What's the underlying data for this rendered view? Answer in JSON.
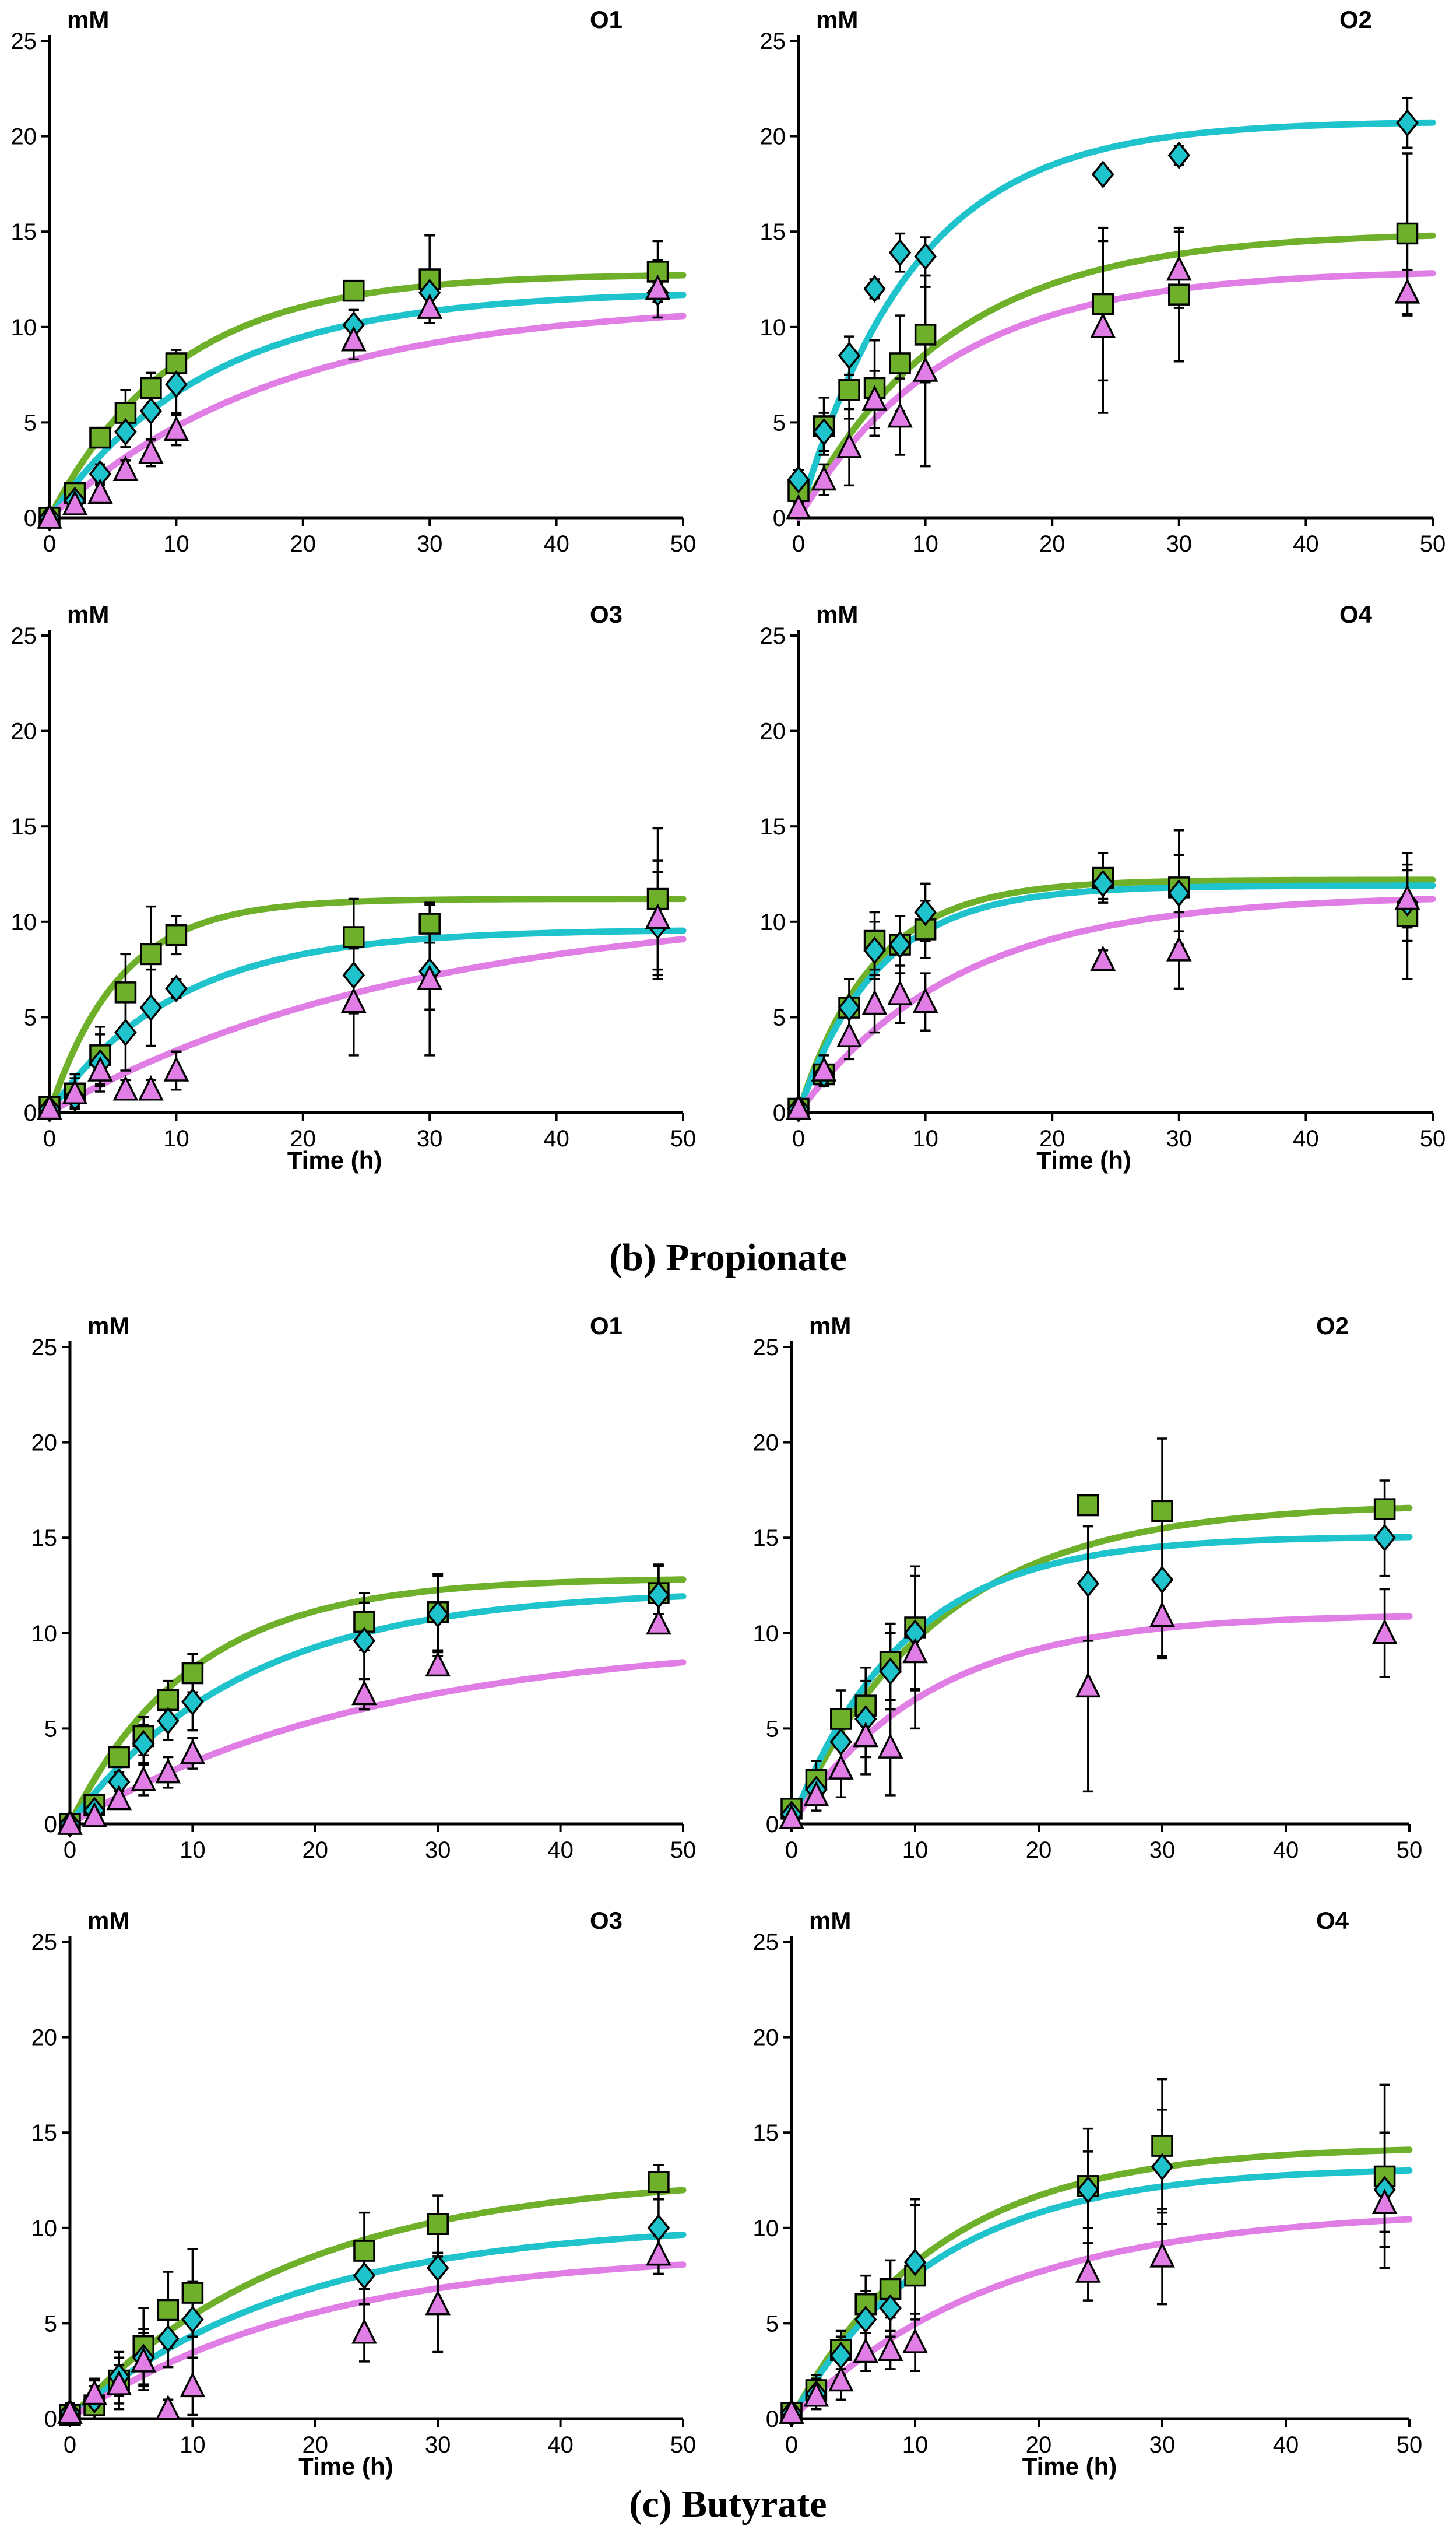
{
  "captions": [
    "(b) Propionate",
    "(c) Butyrate"
  ],
  "series_colors": {
    "square": "#6fb02a",
    "diamond": "#1fc3cc",
    "triangle": "#e07ee6"
  },
  "chart_data": [
    {
      "type": "scatter",
      "section": "Propionate",
      "panel": "O1",
      "unit": "mM",
      "xlabel": "",
      "xlim": [
        0,
        50
      ],
      "ylim": [
        0,
        25
      ],
      "xticks": [
        0,
        10,
        20,
        30,
        40,
        50
      ],
      "yticks": [
        0,
        5,
        10,
        15,
        20,
        25
      ],
      "x": [
        0,
        2,
        4,
        6,
        8,
        10,
        24,
        30,
        48
      ],
      "series": [
        {
          "name": "square",
          "values": [
            0,
            1.3,
            4.2,
            5.5,
            6.8,
            8.1,
            11.9,
            12.5,
            12.9
          ],
          "errors": [
            0,
            0.4,
            0.5,
            1.2,
            0.8,
            0.7,
            0.2,
            2.3,
            1.6
          ],
          "fit": {
            "asymptote": 12.8,
            "rate": 0.1
          }
        },
        {
          "name": "diamond",
          "values": [
            0,
            0.9,
            2.3,
            4.5,
            5.6,
            7,
            10.1,
            11.8,
            11.8
          ],
          "errors": [
            0,
            0.3,
            0.5,
            0.8,
            1.5,
            1.5,
            0.8,
            0.8,
            0.5
          ],
          "fit": {
            "asymptote": 11.9,
            "rate": 0.08
          }
        },
        {
          "name": "triangle",
          "values": [
            0,
            0.7,
            1.3,
            2.5,
            3.4,
            4.6,
            9.3,
            11,
            12
          ],
          "errors": [
            0,
            0.3,
            0.4,
            0.5,
            0.7,
            0.8,
            1,
            0.8,
            1.5
          ],
          "fit": {
            "asymptote": 11.3,
            "rate": 0.055
          }
        }
      ]
    },
    {
      "type": "scatter",
      "section": "Propionate",
      "panel": "O2",
      "unit": "mM",
      "xlabel": "",
      "xlim": [
        0,
        50
      ],
      "ylim": [
        0,
        25
      ],
      "xticks": [
        0,
        10,
        20,
        30,
        40,
        50
      ],
      "yticks": [
        0,
        5,
        10,
        15,
        20,
        25
      ],
      "x": [
        0,
        2,
        4,
        6,
        8,
        10,
        24,
        30,
        48
      ],
      "series": [
        {
          "name": "square",
          "values": [
            1.4,
            4.8,
            6.7,
            6.8,
            8.1,
            9.6,
            11.2,
            11.7,
            14.9
          ],
          "errors": [
            0.4,
            1.5,
            1.5,
            2.5,
            2.5,
            2.5,
            4,
            3.5,
            4.2
          ],
          "fit": {
            "asymptote": 15,
            "rate": 0.085
          }
        },
        {
          "name": "diamond",
          "values": [
            2,
            4.5,
            8.5,
            12,
            13.9,
            13.7,
            18,
            19,
            20.7
          ],
          "errors": [
            0.5,
            1,
            1,
            0.5,
            1,
            1,
            0,
            0.5,
            1.3
          ],
          "fit": {
            "asymptote": 20.8,
            "rate": 0.11
          }
        },
        {
          "name": "triangle",
          "values": [
            0.5,
            2,
            3.7,
            6.2,
            5.3,
            7.7,
            10,
            13,
            11.8
          ],
          "errors": [
            0.3,
            0.8,
            2,
            1.5,
            2,
            5,
            4.5,
            2,
            1.2
          ],
          "fit": {
            "asymptote": 13,
            "rate": 0.085
          }
        }
      ]
    },
    {
      "type": "scatter",
      "section": "Propionate",
      "panel": "O3",
      "unit": "mM",
      "xlabel": "Time (h)",
      "xlim": [
        0,
        50
      ],
      "ylim": [
        0,
        25
      ],
      "xticks": [
        0,
        10,
        20,
        30,
        40,
        50
      ],
      "yticks": [
        0,
        5,
        10,
        15,
        20,
        25
      ],
      "x": [
        0,
        2,
        4,
        6,
        8,
        10,
        24,
        30,
        48
      ],
      "series": [
        {
          "name": "square",
          "values": [
            0.3,
            1,
            3,
            6.3,
            8.3,
            9.3,
            9.2,
            9.9,
            11.2
          ],
          "errors": [
            0.5,
            1,
            1.5,
            2,
            2.5,
            1,
            2,
            1,
            3.7
          ],
          "fit": {
            "asymptote": 11.2,
            "rate": 0.18
          }
        },
        {
          "name": "diamond",
          "values": [
            0.2,
            0.8,
            2.6,
            4.2,
            5.5,
            6.5,
            7.2,
            7.4,
            9.8
          ],
          "errors": [
            0.3,
            0.5,
            1.5,
            2,
            2,
            0.5,
            2,
            2,
            2.8
          ],
          "fit": {
            "asymptote": 9.6,
            "rate": 0.1
          }
        },
        {
          "name": "triangle",
          "values": [
            0.2,
            1,
            2.2,
            1.2,
            1.2,
            2.2,
            5.8,
            7,
            10.2
          ],
          "errors": [
            0.3,
            0.8,
            0.8,
            0.5,
            0.5,
            1,
            2.8,
            4,
            3
          ],
          "fit": {
            "asymptote": 11,
            "rate": 0.035
          }
        }
      ]
    },
    {
      "type": "scatter",
      "section": "Propionate",
      "panel": "O4",
      "unit": "mM",
      "xlabel": "Time (h)",
      "xlim": [
        0,
        50
      ],
      "ylim": [
        0,
        25
      ],
      "xticks": [
        0,
        10,
        20,
        30,
        40,
        50
      ],
      "yticks": [
        0,
        5,
        10,
        15,
        20,
        25
      ],
      "x": [
        0,
        2,
        4,
        6,
        8,
        10,
        24,
        30,
        48
      ],
      "series": [
        {
          "name": "square",
          "values": [
            0.2,
            2,
            5.5,
            9,
            8.8,
            9.6,
            12.3,
            11.8,
            10.3
          ],
          "errors": [
            0.2,
            0.5,
            1.5,
            1.5,
            1.5,
            1.5,
            1.3,
            3,
            3.3
          ],
          "fit": {
            "asymptote": 12.2,
            "rate": 0.17
          }
        },
        {
          "name": "diamond",
          "values": [
            0.2,
            2,
            5.5,
            8.5,
            8.8,
            10.5,
            12,
            11.5,
            11
          ],
          "errors": [
            0.2,
            0.5,
            1.5,
            1.5,
            1.5,
            1.5,
            0.8,
            2,
            2
          ],
          "fit": {
            "asymptote": 11.9,
            "rate": 0.16
          }
        },
        {
          "name": "triangle",
          "values": [
            0.2,
            2.2,
            4,
            5.7,
            6.2,
            5.8,
            8,
            8.5,
            11.2
          ],
          "errors": [
            0.2,
            0.8,
            1.2,
            1.5,
            1.5,
            1.5,
            0.5,
            2,
            1.5
          ],
          "fit": {
            "asymptote": 11.4,
            "rate": 0.08
          }
        }
      ]
    },
    {
      "type": "scatter",
      "section": "Butyrate",
      "panel": "O1",
      "unit": "mM",
      "xlabel": "",
      "xlim": [
        0,
        50
      ],
      "ylim": [
        0,
        25
      ],
      "xticks": [
        0,
        10,
        20,
        30,
        40,
        50
      ],
      "yticks": [
        0,
        5,
        10,
        15,
        20,
        25
      ],
      "x": [
        0,
        2,
        4,
        6,
        8,
        10,
        24,
        30,
        48
      ],
      "series": [
        {
          "name": "square",
          "values": [
            0,
            1,
            3.5,
            4.6,
            6.5,
            7.9,
            10.6,
            11.1,
            12.1
          ],
          "errors": [
            0,
            0.3,
            0.5,
            1,
            1,
            1,
            1.5,
            2,
            1.5
          ],
          "fit": {
            "asymptote": 12.9,
            "rate": 0.1
          }
        },
        {
          "name": "diamond",
          "values": [
            0,
            0.7,
            2.2,
            4.2,
            5.4,
            6.4,
            9.6,
            11,
            12
          ],
          "errors": [
            0,
            0.3,
            0.5,
            1,
            1,
            1.5,
            2,
            2,
            1.5
          ],
          "fit": {
            "asymptote": 12.3,
            "rate": 0.07
          }
        },
        {
          "name": "triangle",
          "values": [
            0,
            0.4,
            1.3,
            2.3,
            2.7,
            3.7,
            6.8,
            8.3,
            10.5
          ],
          "errors": [
            0,
            0.2,
            0.5,
            0.8,
            0.8,
            0.8,
            0.8,
            0.5,
            0.5
          ],
          "fit": {
            "asymptote": 9.8,
            "rate": 0.04
          }
        }
      ]
    },
    {
      "type": "scatter",
      "section": "Butyrate",
      "panel": "O2",
      "unit": "mM",
      "xlabel": "",
      "xlim": [
        0,
        50
      ],
      "ylim": [
        0,
        25
      ],
      "xticks": [
        0,
        10,
        20,
        30,
        40,
        50
      ],
      "yticks": [
        0,
        5,
        10,
        15,
        20,
        25
      ],
      "x": [
        0,
        2,
        4,
        6,
        8,
        10,
        24,
        30,
        48
      ],
      "series": [
        {
          "name": "square",
          "values": [
            0.8,
            2.3,
            5.5,
            6.2,
            8.5,
            10.3,
            16.7,
            16.4,
            16.5
          ],
          "errors": [
            0.3,
            1,
            1.5,
            2,
            2,
            3.2,
            0,
            3.8,
            1.5
          ],
          "fit": {
            "asymptote": 16.8,
            "rate": 0.085
          }
        },
        {
          "name": "diamond",
          "values": [
            0.5,
            1.8,
            4.3,
            5.5,
            8,
            10,
            12.6,
            12.8,
            15
          ],
          "errors": [
            0.3,
            0.8,
            1.5,
            2,
            2,
            3,
            3,
            4,
            2
          ],
          "fit": {
            "asymptote": 15.1,
            "rate": 0.11
          }
        },
        {
          "name": "triangle",
          "values": [
            0.3,
            1.5,
            2.9,
            4.6,
            4,
            9,
            7.2,
            10.9,
            10
          ],
          "errors": [
            0.2,
            0.8,
            1.5,
            2,
            2.5,
            4,
            5.5,
            2.2,
            2.3
          ],
          "fit": {
            "asymptote": 11,
            "rate": 0.09
          }
        }
      ]
    },
    {
      "type": "scatter",
      "section": "Butyrate",
      "panel": "O3",
      "unit": "mM",
      "xlabel": "Time (h)",
      "xlim": [
        0,
        50
      ],
      "ylim": [
        0,
        25
      ],
      "xticks": [
        0,
        10,
        20,
        30,
        40,
        50
      ],
      "yticks": [
        0,
        5,
        10,
        15,
        20,
        25
      ],
      "x": [
        0,
        2,
        4,
        6,
        8,
        10,
        24,
        30,
        48
      ],
      "series": [
        {
          "name": "square",
          "values": [
            0.2,
            0.7,
            2,
            3.8,
            5.7,
            6.6,
            8.8,
            10.2,
            12.4
          ],
          "errors": [
            0.5,
            1,
            1.5,
            2,
            2,
            2.3,
            2,
            1.5,
            0.9
          ],
          "fit": {
            "asymptote": 12.8,
            "rate": 0.055
          }
        },
        {
          "name": "diamond",
          "values": [
            0.3,
            1,
            2.2,
            3.2,
            4.2,
            5.2,
            7.5,
            7.9,
            10
          ],
          "errors": [
            0.5,
            1,
            1,
            1.5,
            1.5,
            2,
            1.5,
            2,
            1.5
          ],
          "fit": {
            "asymptote": 10.3,
            "rate": 0.055
          }
        },
        {
          "name": "triangle",
          "values": [
            0.3,
            1.3,
            1.8,
            3,
            0.5,
            1.7,
            4.5,
            6,
            8.6
          ],
          "errors": [
            0.5,
            0.8,
            1,
            1.5,
            0.5,
            1.5,
            1.5,
            2.5,
            1
          ],
          "fit": {
            "asymptote": 8.8,
            "rate": 0.05
          }
        }
      ]
    },
    {
      "type": "scatter",
      "section": "Butyrate",
      "panel": "O4",
      "unit": "mM",
      "xlabel": "Time (h)",
      "xlim": [
        0,
        50
      ],
      "ylim": [
        0,
        25
      ],
      "xticks": [
        0,
        10,
        20,
        30,
        40,
        50
      ],
      "yticks": [
        0,
        5,
        10,
        15,
        20,
        25
      ],
      "x": [
        0,
        2,
        4,
        6,
        8,
        10,
        24,
        30,
        48
      ],
      "series": [
        {
          "name": "square",
          "values": [
            0.3,
            1.5,
            3.6,
            6,
            6.8,
            7.5,
            12.2,
            14.3,
            12.7
          ],
          "errors": [
            0.3,
            0.8,
            1,
            1.5,
            1.5,
            4,
            3,
            3.5,
            4.8
          ],
          "fit": {
            "asymptote": 14.3,
            "rate": 0.085
          }
        },
        {
          "name": "diamond",
          "values": [
            0.3,
            1.3,
            3.3,
            5.2,
            5.8,
            8.2,
            12,
            13.2,
            12
          ],
          "errors": [
            0.3,
            0.8,
            1,
            1.5,
            1.5,
            3,
            2,
            3,
            3
          ],
          "fit": {
            "asymptote": 13.2,
            "rate": 0.085
          }
        },
        {
          "name": "triangle",
          "values": [
            0.3,
            1.2,
            2,
            3.5,
            3.6,
            4,
            7.7,
            8.5,
            11.3
          ],
          "errors": [
            0.3,
            0.5,
            1,
            1,
            1,
            1.5,
            1.5,
            2.5,
            1.5
          ],
          "fit": {
            "asymptote": 11,
            "rate": 0.06
          }
        }
      ]
    }
  ]
}
